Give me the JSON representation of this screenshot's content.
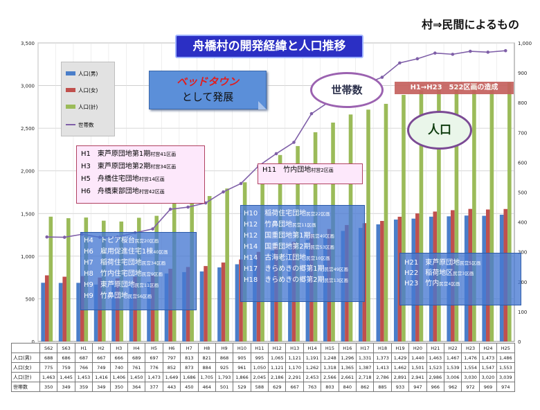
{
  "header": {
    "top_right": "村⇒民間によるもの",
    "title": "舟橋村の開発経緯と人口推移"
  },
  "legend": [
    {
      "label": "人口(男)",
      "color": "#4a7ec9",
      "kind": "bar"
    },
    {
      "label": "人口(女)",
      "color": "#c0504d",
      "kind": "bar"
    },
    {
      "label": "人口(計)",
      "color": "#9bbb59",
      "kind": "bar"
    },
    {
      "label": "世帯数",
      "color": "#7f5fa8",
      "kind": "line"
    }
  ],
  "annotations": {
    "beds_line1": "ベッドタウン",
    "beds_line2": "として発展",
    "households_oval": "世帯数",
    "population_oval": "人口",
    "band": "H1→H23　522区画の造成",
    "callout1": [
      {
        "main": "H1　東芦原団地第1期",
        "sub": "村営41区画"
      },
      {
        "main": "H3　東芦原団地第2期",
        "sub": "村営34区画"
      },
      {
        "main": "H5　舟橋住宅団地",
        "sub": "村営14区画"
      },
      {
        "main": "H6　舟橋東部団地",
        "sub": "村営42区画"
      }
    ],
    "callout2": [
      {
        "main": "H11　竹内団地",
        "sub": "村営2区画"
      }
    ],
    "box1": [
      {
        "main": "H4　トピア桜台",
        "sub": "民営20区画"
      },
      {
        "main": "H6　雇用促進住宅1棟",
        "sub": "40区画"
      },
      {
        "main": "H7　稲荷住宅団地",
        "sub": "民営34区画"
      },
      {
        "main": "H8　竹内住宅団地",
        "sub": "民営9区画"
      },
      {
        "main": "H9　東芦原団地",
        "sub": "民営11区画"
      },
      {
        "main": "H9　竹鼻団地",
        "sub": "民営56区画"
      }
    ],
    "box2": [
      {
        "main": "H10　稲荷住宅団地",
        "sub": "民営22区画"
      },
      {
        "main": "H12　竹鼻団地",
        "sub": "民営11区画"
      },
      {
        "main": "H12　国重団地第1期",
        "sub": "民営49区画"
      },
      {
        "main": "H14　国重団地第2期",
        "sub": "民営53区画"
      },
      {
        "main": "H14　古海老江団地",
        "sub": "民営10区画"
      },
      {
        "main": "H17　きらめきの郷第1期",
        "sub": "民営49区画"
      },
      {
        "main": "H18　きらめきの郷第2期",
        "sub": "民営13区画"
      }
    ],
    "box3": [
      {
        "main": "H21　東芦原団地",
        "sub": "民営5区画"
      },
      {
        "main": "H22　稲荷地区",
        "sub": "民営3区画"
      },
      {
        "main": "H23　竹内",
        "sub": "民営4区画"
      }
    ]
  },
  "chart_data": {
    "type": "bar",
    "categories": [
      "S62",
      "S63",
      "H1",
      "H2",
      "H3",
      "H4",
      "H5",
      "H6",
      "H7",
      "H8",
      "H9",
      "H10",
      "H11",
      "H12",
      "H13",
      "H14",
      "H15",
      "H16",
      "H17",
      "H18",
      "H19",
      "H20",
      "H21",
      "H22",
      "H23",
      "H24",
      "H25"
    ],
    "series": [
      {
        "name": "人口(男)",
        "type": "bar",
        "color": "#4a7ec9",
        "values": [
          688,
          686,
          687,
          667,
          666,
          689,
          697,
          797,
          813,
          821,
          868,
          905,
          995,
          1065,
          1121,
          1191,
          1248,
          1296,
          1331,
          1373,
          1429,
          1440,
          1463,
          1467,
          1476,
          1473,
          1486
        ]
      },
      {
        "name": "人口(女)",
        "type": "bar",
        "color": "#c0504d",
        "values": [
          775,
          759,
          766,
          749,
          740,
          761,
          776,
          852,
          873,
          884,
          925,
          961,
          1050,
          1121,
          1170,
          1262,
          1318,
          1365,
          1387,
          1413,
          1462,
          1501,
          1523,
          1539,
          1554,
          1547,
          1553
        ]
      },
      {
        "name": "人口(計)",
        "type": "bar",
        "color": "#9bbb59",
        "values": [
          1463,
          1445,
          1453,
          1416,
          1406,
          1450,
          1473,
          1649,
          1686,
          1705,
          1793,
          1866,
          2045,
          2186,
          2291,
          2453,
          2566,
          2661,
          2718,
          2786,
          2891,
          2941,
          2986,
          3006,
          3030,
          3020,
          3039
        ]
      },
      {
        "name": "世帯数",
        "type": "line",
        "axis": "right",
        "color": "#7f5fa8",
        "values": [
          350,
          349,
          359,
          349,
          350,
          364,
          377,
          443,
          450,
          464,
          501,
          529,
          588,
          629,
          667,
          763,
          803,
          840,
          862,
          885,
          933,
          947,
          966,
          962,
          972,
          969,
          974
        ]
      }
    ],
    "y_left": {
      "min": 0,
      "max": 3500,
      "ticks": [
        "0",
        "500",
        "1,000",
        "1,500",
        "2,000",
        "2,500",
        "3,000",
        "3,500"
      ]
    },
    "y_right": {
      "min": 0,
      "max": 1000,
      "ticks": [
        "0",
        "100",
        "200",
        "300",
        "400",
        "500",
        "600",
        "700",
        "800",
        "900",
        "1,000"
      ]
    },
    "grid": true
  },
  "table": {
    "row_headers": [
      "人口(男)",
      "人口(女)",
      "人口(計)",
      "世帯数"
    ]
  }
}
